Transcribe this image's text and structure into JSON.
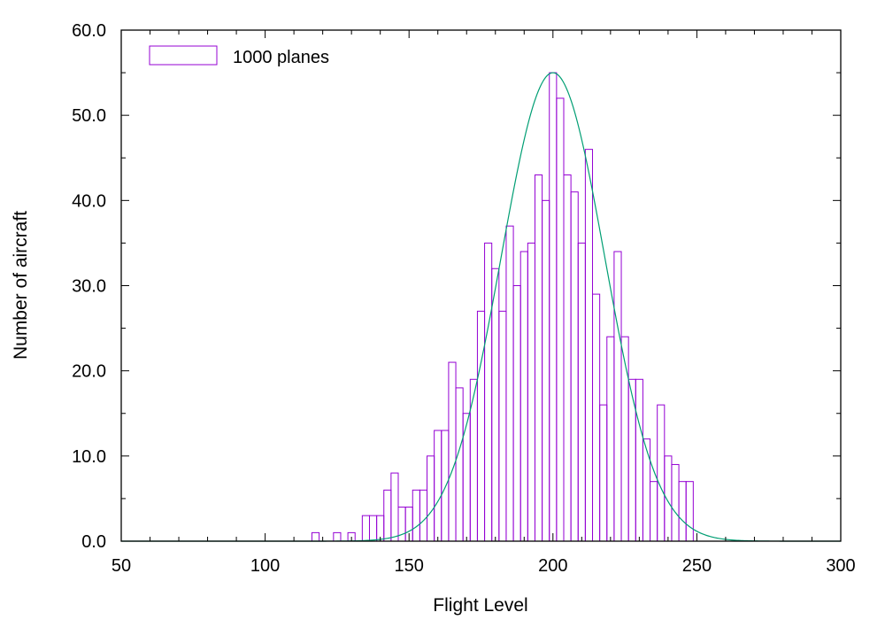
{
  "chart_data": {
    "type": "bar",
    "title": "",
    "xlabel": "Flight Level",
    "ylabel": "Number of aircraft",
    "xlim": [
      50,
      300
    ],
    "ylim": [
      0,
      60
    ],
    "x_ticks": [
      "50",
      "100",
      "150",
      "200",
      "250",
      "300"
    ],
    "y_ticks": [
      "0.0",
      "10.0",
      "20.0",
      "30.0",
      "40.0",
      "50.0",
      "60.0"
    ],
    "grid": false,
    "legend_position": "top-left",
    "bin_width": 2.5,
    "series": [
      {
        "name": "1000 planes",
        "kind": "histogram",
        "color": "#9400d3",
        "x": [
          117.5,
          120,
          122.5,
          125,
          127.5,
          130,
          132.5,
          135,
          137.5,
          140,
          142.5,
          145,
          147.5,
          150,
          152.5,
          155,
          157.5,
          160,
          162.5,
          165,
          167.5,
          170,
          172.5,
          175,
          177.5,
          180,
          182.5,
          185,
          187.5,
          190,
          192.5,
          195,
          197.5,
          200,
          202.5,
          205,
          207.5,
          210,
          212.5,
          215,
          217.5,
          220,
          222.5,
          225,
          227.5,
          230,
          232.5,
          235,
          237.5,
          240,
          242.5,
          245,
          247.5
        ],
        "values": [
          1,
          0,
          0,
          1,
          0,
          1,
          0,
          3,
          3,
          3,
          6,
          8,
          4,
          4,
          6,
          6,
          10,
          13,
          13,
          21,
          18,
          15,
          19,
          27,
          35,
          32,
          27,
          37,
          30,
          34,
          35,
          43,
          40,
          55,
          52,
          43,
          41,
          35,
          46,
          29,
          16,
          24,
          34,
          24,
          19,
          19,
          12,
          7,
          16,
          10,
          9,
          7,
          7
        ]
      },
      {
        "kind": "gaussian-fit",
        "color": "#009e73",
        "mean": 200,
        "sigma": 18,
        "amplitude": 55
      }
    ]
  }
}
